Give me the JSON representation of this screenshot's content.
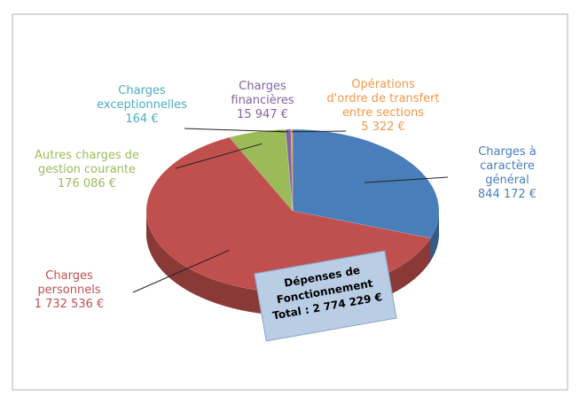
{
  "chart_data": {
    "type": "pie",
    "categories": [
      "Charges à\ncaractère général",
      "Charges\npersonnels",
      "Autres charges de\ngestion courante",
      "Charges\nexceptionnelles",
      "Charges\nfinancières",
      "Opérations\nd'ordre de transfert\nentre sections"
    ],
    "values": [
      844172,
      1732536,
      176086,
      164,
      15947,
      5322
    ],
    "value_labels": [
      "844 172 €",
      "1 732 536 €",
      "176 086 €",
      "164 €",
      "15 947 €",
      "5 322 €"
    ],
    "colors": [
      "#4a7ebb",
      "#c0504d",
      "#9bbb59",
      "#4bacc6",
      "#8064a2",
      "#f79646"
    ],
    "annotation": "Dépenses de\nFonctionnement\nTotal : 2 774 229 €"
  }
}
